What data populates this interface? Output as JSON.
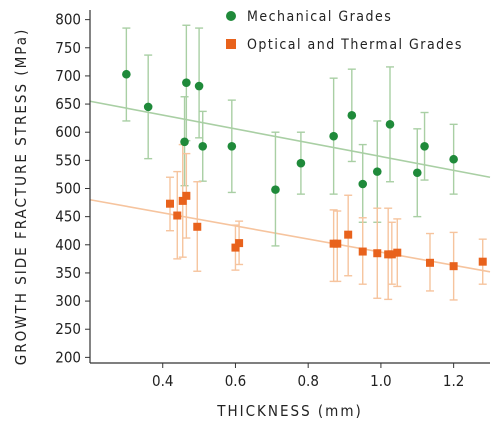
{
  "chart_data": {
    "type": "scatter",
    "xlabel": "THICKNESS (mm)",
    "ylabel": "GROWTH SIDE FRACTURE STRESS (MPa)",
    "xlim": [
      0.2,
      1.3
    ],
    "ylim": [
      190,
      810
    ],
    "x_ticks": [
      0.4,
      0.6,
      0.8,
      1.0,
      1.2
    ],
    "y_ticks": [
      200,
      250,
      300,
      350,
      400,
      450,
      500,
      550,
      600,
      650,
      700,
      750,
      800
    ],
    "grid": false,
    "legend_position": "top-right",
    "series": [
      {
        "name": "Mechanical Grades",
        "color": "#1f8a3a",
        "error_color": "#a9cfa4",
        "trend": [
          [
            0.2,
            655
          ],
          [
            1.3,
            520
          ]
        ],
        "points": [
          {
            "x": 0.3,
            "y": 703,
            "lo": 620,
            "hi": 785
          },
          {
            "x": 0.36,
            "y": 645,
            "lo": 553,
            "hi": 737
          },
          {
            "x": 0.46,
            "y": 583,
            "lo": 505,
            "hi": 663
          },
          {
            "x": 0.465,
            "y": 688,
            "lo": 585,
            "hi": 790
          },
          {
            "x": 0.5,
            "y": 682,
            "lo": 590,
            "hi": 785
          },
          {
            "x": 0.51,
            "y": 575,
            "lo": 513,
            "hi": 637
          },
          {
            "x": 0.59,
            "y": 575,
            "lo": 493,
            "hi": 657
          },
          {
            "x": 0.71,
            "y": 498,
            "lo": 398,
            "hi": 600
          },
          {
            "x": 0.78,
            "y": 545,
            "lo": 490,
            "hi": 600
          },
          {
            "x": 0.87,
            "y": 593,
            "lo": 490,
            "hi": 696
          },
          {
            "x": 0.92,
            "y": 630,
            "lo": 548,
            "hi": 712
          },
          {
            "x": 0.95,
            "y": 508,
            "lo": 440,
            "hi": 578
          },
          {
            "x": 0.99,
            "y": 530,
            "lo": 440,
            "hi": 620
          },
          {
            "x": 1.025,
            "y": 614,
            "lo": 512,
            "hi": 716
          },
          {
            "x": 1.1,
            "y": 528,
            "lo": 450,
            "hi": 606
          },
          {
            "x": 1.12,
            "y": 575,
            "lo": 515,
            "hi": 635
          },
          {
            "x": 1.2,
            "y": 552,
            "lo": 490,
            "hi": 614
          }
        ]
      },
      {
        "name": "Optical and Thermal Grades",
        "color": "#e8621c",
        "error_color": "#f6c49e",
        "trend": [
          [
            0.2,
            480
          ],
          [
            1.3,
            352
          ]
        ],
        "points": [
          {
            "x": 0.42,
            "y": 473,
            "lo": 425,
            "hi": 520
          },
          {
            "x": 0.44,
            "y": 452,
            "lo": 375,
            "hi": 530
          },
          {
            "x": 0.455,
            "y": 478,
            "lo": 378,
            "hi": 578
          },
          {
            "x": 0.465,
            "y": 487,
            "lo": 412,
            "hi": 562
          },
          {
            "x": 0.495,
            "y": 432,
            "lo": 353,
            "hi": 512
          },
          {
            "x": 0.6,
            "y": 395,
            "lo": 355,
            "hi": 435
          },
          {
            "x": 0.61,
            "y": 403,
            "lo": 365,
            "hi": 442
          },
          {
            "x": 0.87,
            "y": 402,
            "lo": 335,
            "hi": 462
          },
          {
            "x": 0.88,
            "y": 402,
            "lo": 335,
            "hi": 460
          },
          {
            "x": 0.91,
            "y": 418,
            "lo": 345,
            "hi": 488
          },
          {
            "x": 0.95,
            "y": 388,
            "lo": 330,
            "hi": 448
          },
          {
            "x": 0.99,
            "y": 385,
            "lo": 305,
            "hi": 465
          },
          {
            "x": 1.02,
            "y": 383,
            "lo": 303,
            "hi": 465
          },
          {
            "x": 1.03,
            "y": 383,
            "lo": 330,
            "hi": 440
          },
          {
            "x": 1.045,
            "y": 386,
            "lo": 326,
            "hi": 446
          },
          {
            "x": 1.135,
            "y": 368,
            "lo": 318,
            "hi": 420
          },
          {
            "x": 1.2,
            "y": 362,
            "lo": 302,
            "hi": 422
          },
          {
            "x": 1.28,
            "y": 370,
            "lo": 330,
            "hi": 410
          }
        ]
      }
    ]
  }
}
